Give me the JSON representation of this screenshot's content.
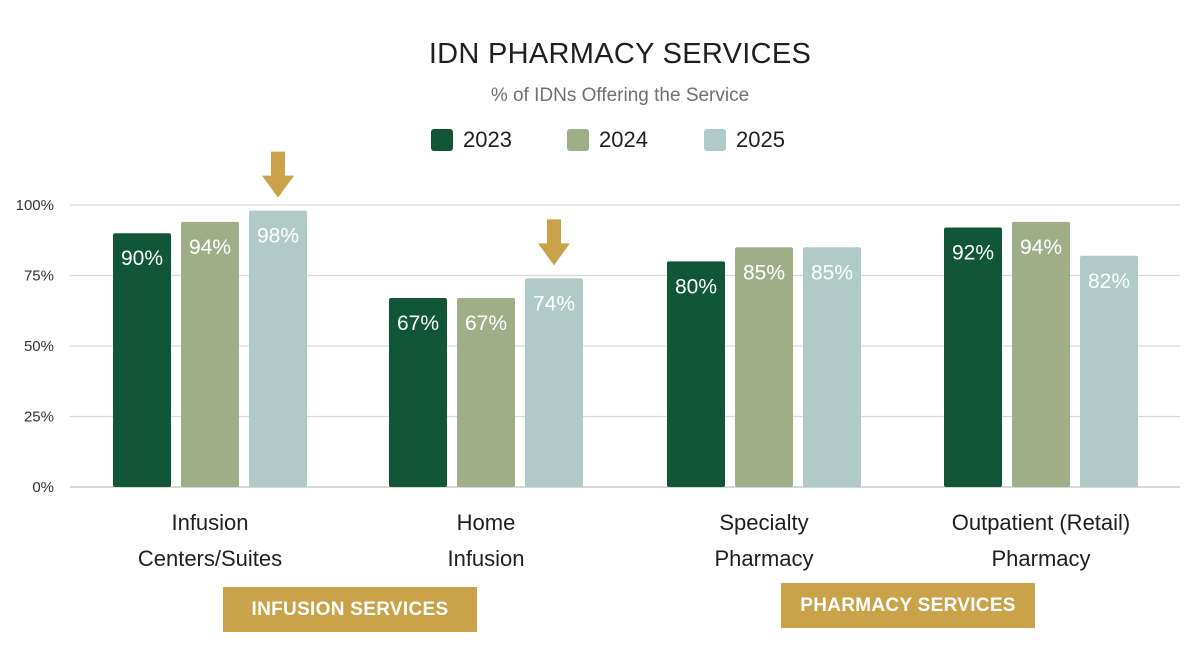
{
  "chart_data": {
    "type": "bar",
    "title": "IDN PHARMACY SERVICES",
    "subtitle": "% of IDNs Offering the Service",
    "categories": [
      [
        "Infusion",
        "Centers/Suites"
      ],
      [
        "Home",
        "Infusion"
      ],
      [
        "Specialty",
        "Pharmacy"
      ],
      [
        "Outpatient (Retail)",
        "Pharmacy"
      ]
    ],
    "series": [
      {
        "name": "2023",
        "color": "#115639",
        "values": [
          90,
          67,
          80,
          92
        ],
        "labels": [
          "90%",
          "67%",
          "80%",
          "92%"
        ]
      },
      {
        "name": "2024",
        "color": "#a0ae88",
        "values": [
          94,
          67,
          85,
          94
        ],
        "labels": [
          "94%",
          "67%",
          "85%",
          "94%"
        ]
      },
      {
        "name": "2025",
        "color": "#b0cbc7",
        "values": [
          98,
          74,
          85,
          82
        ],
        "labels": [
          "98%",
          "74%",
          "85%",
          "82%"
        ]
      }
    ],
    "ylim": [
      0,
      100
    ],
    "yticks": [
      0,
      25,
      50,
      75,
      100
    ],
    "ytick_labels": [
      "0%",
      "25%",
      "50%",
      "75%",
      "100%"
    ],
    "grid": true,
    "legend": "top-center",
    "annotations": [
      {
        "kind": "down-arrow",
        "category": 0,
        "series": 2,
        "color": "#c9a24a"
      },
      {
        "kind": "down-arrow",
        "category": 1,
        "series": 2,
        "color": "#c9a24a"
      }
    ],
    "group_banners": [
      {
        "label": "INFUSION SERVICES",
        "color": "#c9a24a"
      },
      {
        "label": "PHARMACY SERVICES",
        "color": "#c9a24a"
      }
    ]
  }
}
